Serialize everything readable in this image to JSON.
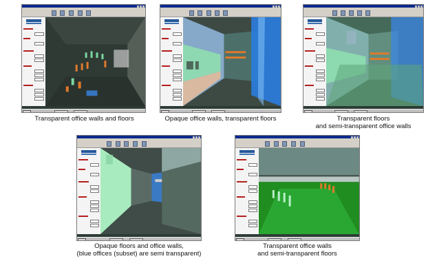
{
  "panels": [
    {
      "caption": [
        "Transparent office walls and floors"
      ]
    },
    {
      "caption": [
        "Opaque office walls, transparent floors"
      ]
    },
    {
      "caption": [
        "Transparent floors",
        "and semi-transparent office walls"
      ]
    },
    {
      "caption": [
        "Opaque floors and office walls,",
        "(blue offices (subset) are semi transparent)"
      ]
    },
    {
      "caption": [
        "Transparent office walls",
        "and semi-transparent floors"
      ]
    }
  ],
  "colors": {
    "titlebar": "#0b2a8c",
    "scene_dark": "#2f3a34",
    "office_green": "#79d6a0",
    "office_blue": "#3a86e4",
    "floor_green": "#1f8d1f",
    "tag_orange": "#e07a2a"
  },
  "icons": [
    "window-minimize-icon",
    "window-maximize-icon",
    "window-close-icon",
    "start-button-icon"
  ]
}
